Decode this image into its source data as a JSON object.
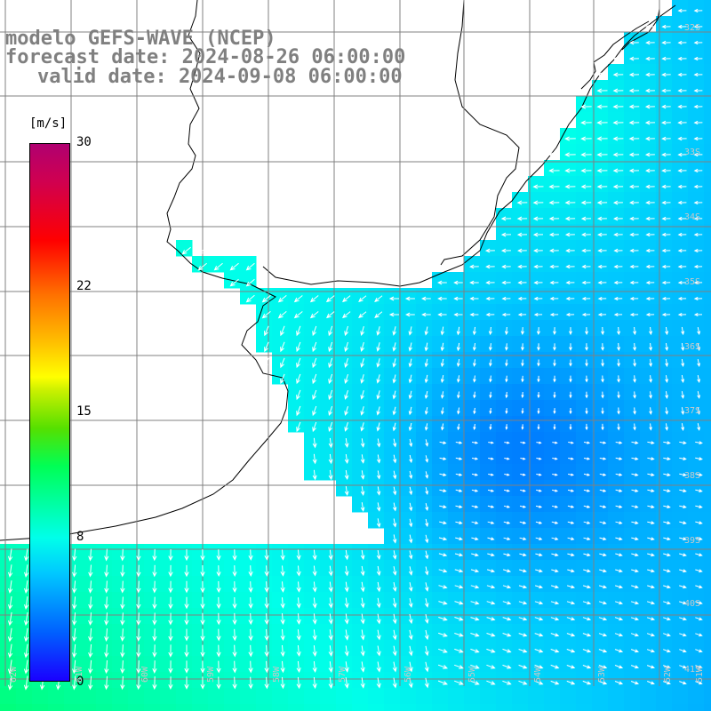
{
  "header": {
    "line1": "modelo GEFS-WAVE (NCEP)",
    "line2": "forecast date: 2024-08-26 06:00:00",
    "line3": "valid date: 2024-09-08 06:00:00"
  },
  "legend": {
    "unit": "[m/s]",
    "ticks": [
      {
        "value": 30,
        "label": "30"
      },
      {
        "value": 22,
        "label": "22"
      },
      {
        "value": 15,
        "label": "15"
      },
      {
        "value": 8,
        "label": "8"
      },
      {
        "value": 0,
        "label": "0"
      }
    ],
    "range": [
      0,
      30
    ]
  },
  "map": {
    "lat_labels": [
      "32S",
      "33S",
      "34S",
      "35S",
      "36S",
      "37S",
      "38S",
      "39S",
      "40S",
      "41S"
    ],
    "lon_labels": [
      "62W",
      "61W",
      "60W",
      "59W",
      "58W",
      "57W",
      "56W",
      "55W",
      "54W",
      "53W",
      "52W",
      "51W"
    ],
    "land_color": "#ffffff",
    "grid_color": "#808080",
    "arrow_color": "#ffffff"
  }
}
